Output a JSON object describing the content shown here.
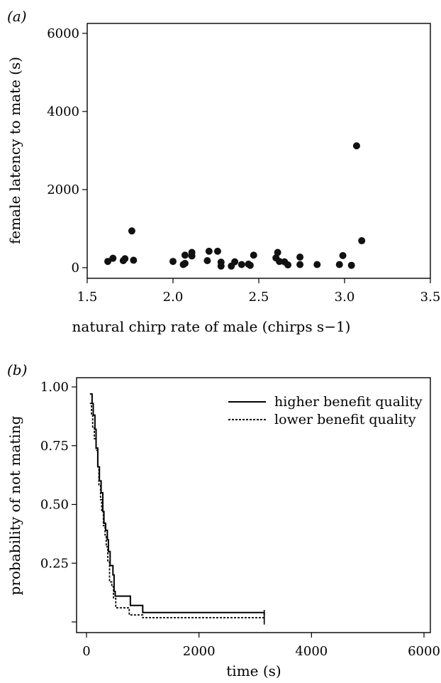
{
  "chart_data": [
    {
      "panel_label": "(a)",
      "type": "scatter",
      "xlabel": "natural chirp rate of male (chirps s−1)",
      "ylabel": "female latency to mate (s)",
      "xlim": [
        1.5,
        3.5
      ],
      "ylim": [
        0,
        6000
      ],
      "xticks": [
        "1.5",
        "2.0",
        "2.5",
        "3.0",
        "3.5"
      ],
      "yticks": [
        "0",
        "2000",
        "4000",
        "6000"
      ],
      "grid": false,
      "points": [
        [
          1.62,
          160
        ],
        [
          1.65,
          240
        ],
        [
          1.71,
          180
        ],
        [
          1.72,
          230
        ],
        [
          1.76,
          940
        ],
        [
          1.77,
          190
        ],
        [
          2.0,
          160
        ],
        [
          2.06,
          80
        ],
        [
          2.07,
          320
        ],
        [
          2.07,
          110
        ],
        [
          2.11,
          300
        ],
        [
          2.11,
          390
        ],
        [
          2.2,
          180
        ],
        [
          2.21,
          420
        ],
        [
          2.26,
          420
        ],
        [
          2.28,
          40
        ],
        [
          2.28,
          140
        ],
        [
          2.34,
          40
        ],
        [
          2.36,
          150
        ],
        [
          2.4,
          80
        ],
        [
          2.44,
          90
        ],
        [
          2.45,
          60
        ],
        [
          2.47,
          320
        ],
        [
          2.6,
          250
        ],
        [
          2.61,
          390
        ],
        [
          2.62,
          160
        ],
        [
          2.65,
          150
        ],
        [
          2.67,
          70
        ],
        [
          2.74,
          270
        ],
        [
          2.74,
          80
        ],
        [
          2.84,
          80
        ],
        [
          2.97,
          80
        ],
        [
          2.99,
          310
        ],
        [
          3.04,
          60
        ],
        [
          3.07,
          3120
        ],
        [
          3.1,
          690
        ]
      ]
    },
    {
      "panel_label": "(b)",
      "type": "line",
      "step": true,
      "xlabel": "time (s)",
      "ylabel": "probability of not mating",
      "xlim": [
        0,
        6000
      ],
      "ylim": [
        0,
        1.0
      ],
      "xticks": [
        "0",
        "2000",
        "4000",
        "6000"
      ],
      "yticks": [
        "0.25",
        "0.50",
        "0.75",
        "1.00"
      ],
      "grid": false,
      "legend_position": "top-right",
      "series": [
        {
          "name": "higher benefit quality",
          "style": "solid",
          "points": [
            [
              60,
              0.97
            ],
            [
              100,
              0.93
            ],
            [
              120,
              0.88
            ],
            [
              150,
              0.82
            ],
            [
              170,
              0.74
            ],
            [
              200,
              0.66
            ],
            [
              230,
              0.6
            ],
            [
              260,
              0.55
            ],
            [
              290,
              0.47
            ],
            [
              310,
              0.42
            ],
            [
              340,
              0.39
            ],
            [
              370,
              0.35
            ],
            [
              390,
              0.3
            ],
            [
              420,
              0.24
            ],
            [
              470,
              0.2
            ],
            [
              490,
              0.13
            ],
            [
              510,
              0.11
            ],
            [
              780,
              0.07
            ],
            [
              1000,
              0.04
            ],
            [
              3160,
              0.03
            ]
          ]
        },
        {
          "name": "lower benefit quality",
          "style": "dashed",
          "points": [
            [
              60,
              0.93
            ],
            [
              90,
              0.88
            ],
            [
              110,
              0.83
            ],
            [
              140,
              0.78
            ],
            [
              170,
              0.73
            ],
            [
              200,
              0.66
            ],
            [
              220,
              0.58
            ],
            [
              250,
              0.52
            ],
            [
              270,
              0.47
            ],
            [
              300,
              0.41
            ],
            [
              330,
              0.37
            ],
            [
              350,
              0.32
            ],
            [
              380,
              0.26
            ],
            [
              410,
              0.17
            ],
            [
              450,
              0.15
            ],
            [
              480,
              0.1
            ],
            [
              520,
              0.06
            ],
            [
              760,
              0.03
            ],
            [
              1000,
              0.018
            ],
            [
              3160,
              0.01
            ]
          ]
        }
      ]
    }
  ]
}
